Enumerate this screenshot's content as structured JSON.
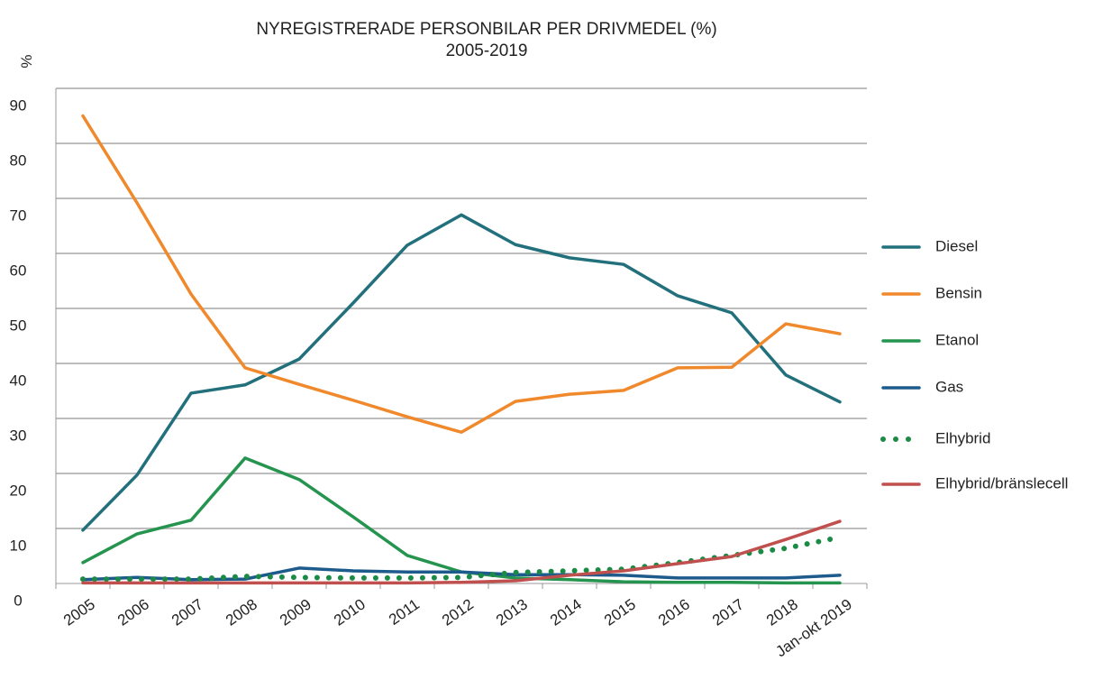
{
  "chart_data": {
    "type": "line",
    "title": "NYREGISTRERADE PERSONBILAR PER DRIVMEDEL (%)",
    "subtitle": "2005-2019",
    "y_label": "%",
    "categories": [
      "2005",
      "2006",
      "2007",
      "2008",
      "2009",
      "2010",
      "2011",
      "2012",
      "2013",
      "2014",
      "2015",
      "2016",
      "2017",
      "2018",
      "Jan-okt 2019"
    ],
    "series": [
      {
        "name": "Diesel",
        "color": "#22707c",
        "style": "solid",
        "values": [
          9.7,
          19.7,
          34.6,
          36.1,
          40.8,
          51,
          61.5,
          67,
          61.6,
          59.2,
          58,
          52.3,
          49.2,
          37.9,
          33
        ]
      },
      {
        "name": "Bensin",
        "color": "#f0892c",
        "style": "solid",
        "values": [
          85,
          69.2,
          52.6,
          39.2,
          36.2,
          33.3,
          30.3,
          27.5,
          33.1,
          34.4,
          35.1,
          39.2,
          39.3,
          47.2,
          45.4
        ]
      },
      {
        "name": "Etanol",
        "color": "#24944f",
        "style": "solid",
        "values": [
          3.8,
          9,
          11.5,
          22.8,
          18.9,
          12.1,
          5.1,
          2.1,
          1,
          0.7,
          0.3,
          0.2,
          0.2,
          0.1,
          0.1
        ]
      },
      {
        "name": "Gas",
        "color": "#1d5b8c",
        "style": "solid",
        "values": [
          0.7,
          1.1,
          0.7,
          0.8,
          2.8,
          2.3,
          2.1,
          2.1,
          1.6,
          1.6,
          1.5,
          1,
          1,
          1,
          1.5
        ]
      },
      {
        "name": "Elhybrid",
        "color": "#1b8a45",
        "style": "dotted",
        "values": [
          0.8,
          0.8,
          0.8,
          1.3,
          1.1,
          1,
          1,
          1.1,
          2,
          2.3,
          2.6,
          3.8,
          5.1,
          6.4,
          8.4
        ]
      },
      {
        "name": "Elhybrid/bränslecell",
        "color": "#c0504d",
        "style": "solid",
        "values": [
          0.1,
          0.1,
          0.1,
          0.1,
          0.1,
          0.1,
          0.1,
          0.2,
          0.5,
          1.5,
          2.3,
          3.6,
          4.9,
          8,
          11.3
        ]
      }
    ],
    "ylim": [
      0,
      90
    ],
    "yticks": [
      0,
      10,
      20,
      30,
      40,
      50,
      60,
      70,
      80,
      90
    ],
    "grid": true,
    "legend": "right"
  }
}
